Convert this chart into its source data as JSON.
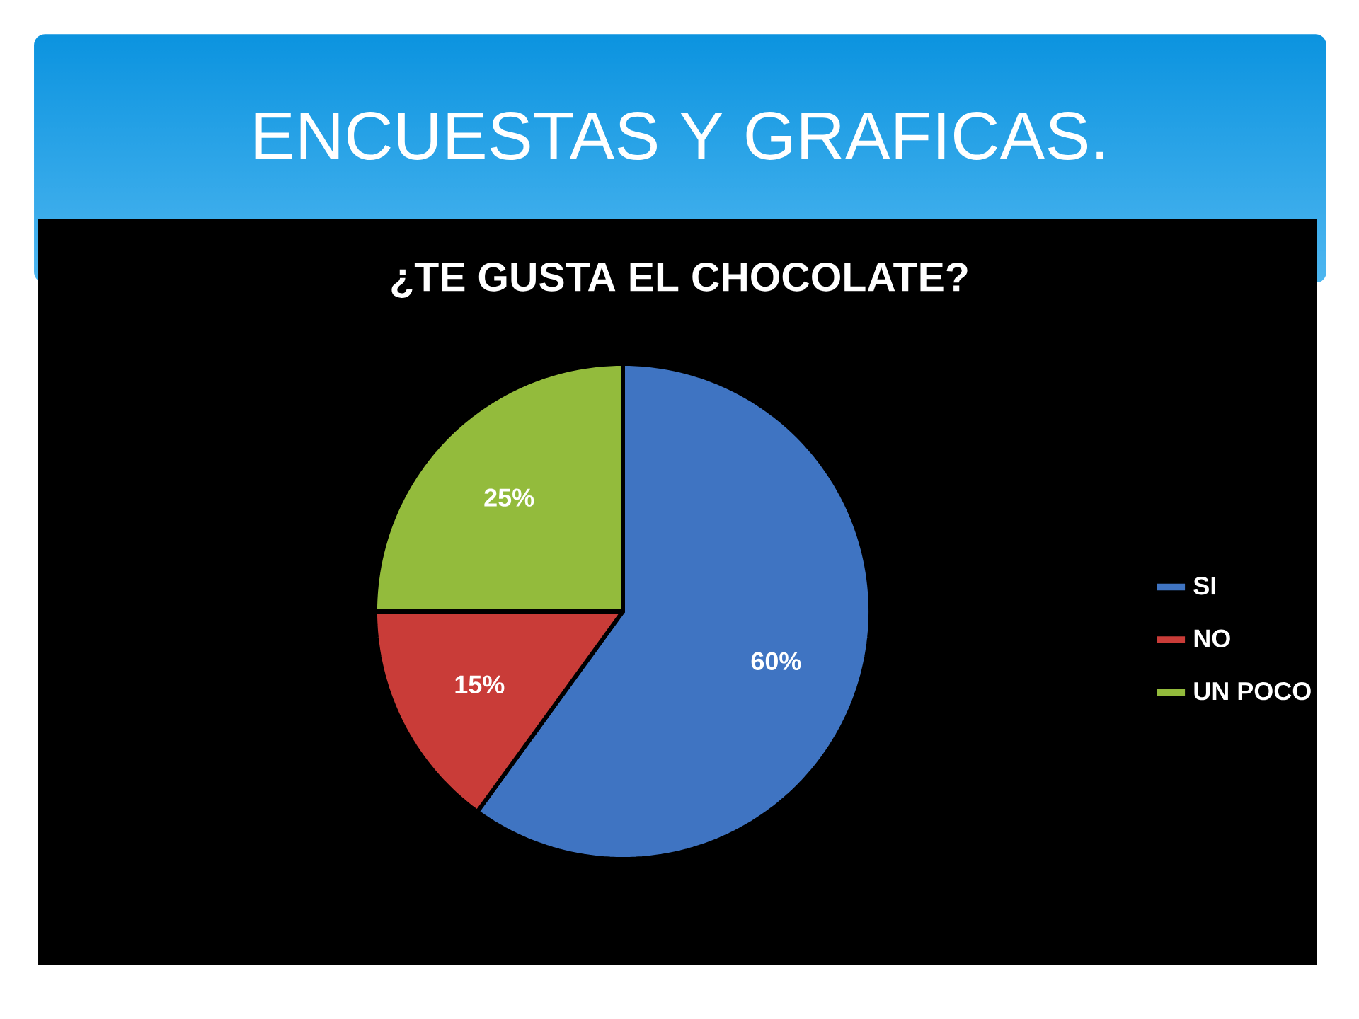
{
  "chart_data": {
    "type": "pie",
    "title": "ENCUESTAS Y GRAFICAS.",
    "subtitle": "¿TE GUSTA EL CHOCOLATE?",
    "categories": [
      "SI",
      "NO",
      "UN POCO"
    ],
    "values": [
      60,
      15,
      25
    ],
    "colors": [
      "#3f74c2",
      "#c93c38",
      "#93bb3c"
    ],
    "value_labels": [
      "60%",
      "15%",
      "25%"
    ],
    "legend": "right"
  }
}
